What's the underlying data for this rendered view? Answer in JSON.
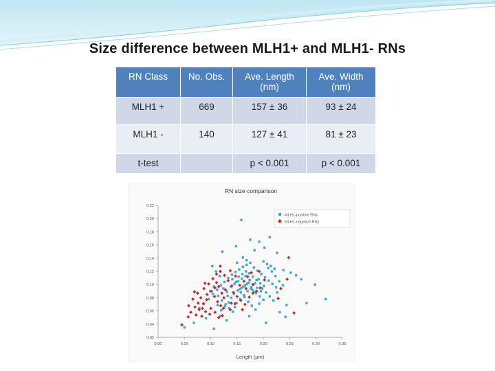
{
  "slide": {
    "title": "Size difference between MLH1+ and MLH1- RNs"
  },
  "table": {
    "headers": [
      "RN Class",
      "No. Obs.",
      "Ave. Length (nm)",
      "Ave. Width (nm)"
    ],
    "rows": [
      [
        "MLH1 +",
        "669",
        "157 ± 36",
        "93 ± 24"
      ],
      [
        "MLH1 -",
        "140",
        "127  ± 41",
        "81 ± 23"
      ],
      [
        "t-test",
        "",
        "p < 0.001",
        "p < 0.001"
      ]
    ]
  },
  "chart_data": {
    "type": "scatter",
    "title": "RN size comparison",
    "xlabel": "Length (µm)",
    "ylabel": "",
    "xlim": [
      0.0,
      0.35
    ],
    "ylim": [
      0.02,
      0.22
    ],
    "xticks": [
      "0.00",
      "0.05",
      "0.10",
      "0.15",
      "0.20",
      "0.25",
      "0.30",
      "0.35"
    ],
    "yticks": [
      "0.02",
      "0.04",
      "0.06",
      "0.08",
      "0.10",
      "0.12",
      "0.14",
      "0.16",
      "0.18",
      "0.20",
      "0.22"
    ],
    "legend_position": "top-right",
    "grid": false,
    "series": [
      {
        "name": "MLH1-positive RNs",
        "color": "#3ea6d8",
        "marker": "square",
        "points": [
          [
            0.158,
            0.198
          ],
          [
            0.212,
            0.172
          ],
          [
            0.175,
            0.168
          ],
          [
            0.192,
            0.165
          ],
          [
            0.148,
            0.158
          ],
          [
            0.202,
            0.156
          ],
          [
            0.122,
            0.15
          ],
          [
            0.183,
            0.152
          ],
          [
            0.226,
            0.148
          ],
          [
            0.238,
            0.122
          ],
          [
            0.252,
            0.118
          ],
          [
            0.262,
            0.114
          ],
          [
            0.272,
            0.108
          ],
          [
            0.298,
            0.1
          ],
          [
            0.318,
            0.078
          ],
          [
            0.282,
            0.072
          ],
          [
            0.244,
            0.069
          ],
          [
            0.231,
            0.058
          ],
          [
            0.242,
            0.051
          ],
          [
            0.205,
            0.042
          ],
          [
            0.106,
            0.033
          ],
          [
            0.05,
            0.035
          ],
          [
            0.068,
            0.042
          ],
          [
            0.091,
            0.049
          ],
          [
            0.118,
            0.052
          ],
          [
            0.13,
            0.046
          ],
          [
            0.173,
            0.052
          ],
          [
            0.078,
            0.064
          ],
          [
            0.087,
            0.071
          ],
          [
            0.096,
            0.078
          ],
          [
            0.104,
            0.086
          ],
          [
            0.112,
            0.092
          ],
          [
            0.119,
            0.099
          ],
          [
            0.126,
            0.104
          ],
          [
            0.133,
            0.11
          ],
          [
            0.14,
            0.115
          ],
          [
            0.147,
            0.119
          ],
          [
            0.154,
            0.123
          ],
          [
            0.161,
            0.127
          ],
          [
            0.168,
            0.13
          ],
          [
            0.175,
            0.133
          ],
          [
            0.182,
            0.126
          ],
          [
            0.189,
            0.121
          ],
          [
            0.196,
            0.116
          ],
          [
            0.203,
            0.111
          ],
          [
            0.21,
            0.106
          ],
          [
            0.217,
            0.101
          ],
          [
            0.224,
            0.096
          ],
          [
            0.114,
            0.083
          ],
          [
            0.121,
            0.076
          ],
          [
            0.128,
            0.07
          ],
          [
            0.135,
            0.064
          ],
          [
            0.142,
            0.059
          ],
          [
            0.149,
            0.072
          ],
          [
            0.156,
            0.078
          ],
          [
            0.163,
            0.084
          ],
          [
            0.17,
            0.09
          ],
          [
            0.177,
            0.096
          ],
          [
            0.184,
            0.102
          ],
          [
            0.191,
            0.108
          ],
          [
            0.198,
            0.094
          ],
          [
            0.205,
            0.088
          ],
          [
            0.212,
            0.082
          ],
          [
            0.219,
            0.076
          ],
          [
            0.226,
            0.088
          ],
          [
            0.138,
            0.097
          ],
          [
            0.145,
            0.101
          ],
          [
            0.152,
            0.105
          ],
          [
            0.159,
            0.109
          ],
          [
            0.166,
            0.113
          ],
          [
            0.173,
            0.117
          ],
          [
            0.18,
            0.112
          ],
          [
            0.187,
            0.107
          ],
          [
            0.194,
            0.102
          ],
          [
            0.201,
            0.098
          ],
          [
            0.144,
            0.086
          ],
          [
            0.151,
            0.091
          ],
          [
            0.158,
            0.095
          ],
          [
            0.165,
            0.099
          ],
          [
            0.172,
            0.103
          ],
          [
            0.179,
            0.092
          ],
          [
            0.186,
            0.087
          ],
          [
            0.193,
            0.082
          ],
          [
            0.2,
            0.077
          ],
          [
            0.131,
            0.089
          ],
          [
            0.124,
            0.094
          ],
          [
            0.117,
            0.113
          ],
          [
            0.11,
            0.12
          ],
          [
            0.103,
            0.128
          ],
          [
            0.161,
            0.141
          ],
          [
            0.168,
            0.137
          ],
          [
            0.15,
            0.133
          ],
          [
            0.157,
            0.088
          ],
          [
            0.164,
            0.081
          ],
          [
            0.171,
            0.074
          ],
          [
            0.178,
            0.068
          ],
          [
            0.185,
            0.062
          ],
          [
            0.192,
            0.071
          ],
          [
            0.146,
            0.066
          ],
          [
            0.139,
            0.08
          ],
          [
            0.132,
            0.083
          ],
          [
            0.153,
            0.112
          ],
          [
            0.16,
            0.116
          ],
          [
            0.167,
            0.12
          ],
          [
            0.174,
            0.107
          ],
          [
            0.181,
            0.1
          ],
          [
            0.188,
            0.095
          ],
          [
            0.195,
            0.09
          ],
          [
            0.155,
            0.093
          ],
          [
            0.162,
            0.097
          ],
          [
            0.169,
            0.101
          ],
          [
            0.176,
            0.094
          ],
          [
            0.183,
            0.089
          ],
          [
            0.148,
            0.104
          ],
          [
            0.141,
            0.108
          ],
          [
            0.134,
            0.073
          ],
          [
            0.127,
            0.067
          ],
          [
            0.12,
            0.061
          ],
          [
            0.209,
            0.125
          ],
          [
            0.216,
            0.12
          ],
          [
            0.223,
            0.113
          ],
          [
            0.23,
            0.105
          ],
          [
            0.237,
            0.099
          ],
          [
            0.099,
            0.09
          ],
          [
            0.106,
            0.097
          ],
          [
            0.113,
            0.069
          ],
          [
            0.2,
            0.135
          ],
          [
            0.207,
            0.131
          ],
          [
            0.214,
            0.128
          ],
          [
            0.221,
            0.124
          ]
        ]
      },
      {
        "name": "MLH1-negative RNs",
        "color": "#d42020",
        "marker": "diamond",
        "points": [
          [
            0.045,
            0.039
          ],
          [
            0.062,
            0.058
          ],
          [
            0.07,
            0.066
          ],
          [
            0.058,
            0.068
          ],
          [
            0.076,
            0.072
          ],
          [
            0.084,
            0.064
          ],
          [
            0.09,
            0.059
          ],
          [
            0.098,
            0.055
          ],
          [
            0.081,
            0.08
          ],
          [
            0.093,
            0.085
          ],
          [
            0.101,
            0.09
          ],
          [
            0.087,
            0.094
          ],
          [
            0.107,
            0.082
          ],
          [
            0.113,
            0.074
          ],
          [
            0.119,
            0.068
          ],
          [
            0.096,
            0.101
          ],
          [
            0.104,
            0.109
          ],
          [
            0.111,
            0.116
          ],
          [
            0.118,
            0.12
          ],
          [
            0.126,
            0.114
          ],
          [
            0.133,
            0.106
          ],
          [
            0.14,
            0.098
          ],
          [
            0.128,
            0.092
          ],
          [
            0.121,
            0.087
          ],
          [
            0.143,
            0.088
          ],
          [
            0.15,
            0.082
          ],
          [
            0.157,
            0.076
          ],
          [
            0.165,
            0.07
          ],
          [
            0.173,
            0.081
          ],
          [
            0.18,
            0.087
          ],
          [
            0.187,
            0.09
          ],
          [
            0.194,
            0.095
          ],
          [
            0.163,
            0.105
          ],
          [
            0.17,
            0.112
          ],
          [
            0.177,
            0.118
          ],
          [
            0.155,
            0.099
          ],
          [
            0.075,
            0.087
          ],
          [
            0.066,
            0.078
          ],
          [
            0.083,
            0.052
          ],
          [
            0.1,
            0.064
          ],
          [
            0.108,
            0.058
          ],
          [
            0.115,
            0.05
          ],
          [
            0.124,
            0.064
          ],
          [
            0.137,
            0.062
          ],
          [
            0.146,
            0.071
          ],
          [
            0.16,
            0.062
          ],
          [
            0.115,
            0.097
          ],
          [
            0.092,
            0.077
          ],
          [
            0.078,
            0.062
          ],
          [
            0.072,
            0.054
          ],
          [
            0.137,
            0.121
          ],
          [
            0.118,
            0.128
          ],
          [
            0.108,
            0.095
          ],
          [
            0.167,
            0.094
          ],
          [
            0.18,
            0.1
          ],
          [
            0.202,
            0.107
          ],
          [
            0.147,
            0.113
          ],
          [
            0.057,
            0.051
          ],
          [
            0.125,
            0.08
          ],
          [
            0.111,
            0.103
          ],
          [
            0.228,
            0.079
          ],
          [
            0.233,
            0.094
          ],
          [
            0.258,
            0.057
          ],
          [
            0.245,
            0.108
          ],
          [
            0.192,
            0.12
          ],
          [
            0.089,
            0.102
          ],
          [
            0.122,
            0.053
          ],
          [
            0.086,
            0.071
          ],
          [
            0.069,
            0.089
          ],
          [
            0.139,
            0.072
          ],
          [
            0.248,
            0.141
          ]
        ]
      }
    ]
  }
}
